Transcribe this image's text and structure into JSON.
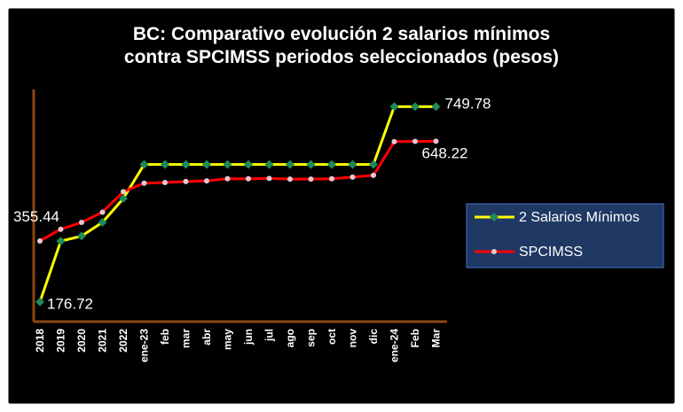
{
  "chart_data": {
    "type": "line",
    "title": "BC: Comparativo evolución 2 salarios mínimos",
    "subtitle": "contra SPCIMSS periodos seleccionados (pesos)",
    "categories": [
      "2018",
      "2019",
      "2020",
      "2021",
      "2022",
      "ene-23",
      "feb",
      "mar",
      "abr",
      "may",
      "jun",
      "jul",
      "ago",
      "sep",
      "oct",
      "nov",
      "dic",
      "ene-24",
      "Feb",
      "Mar"
    ],
    "ylim": [
      150,
      800
    ],
    "grid": false,
    "legend_position": "right",
    "series": [
      {
        "name": "2 Salarios Mínimos",
        "color": "#ffff00",
        "marker_color": "#1e8a5a",
        "values": [
          176.72,
          355.0,
          370.0,
          410.0,
          480.0,
          580.0,
          580.0,
          580.0,
          580.0,
          580.0,
          580.0,
          580.0,
          580.0,
          580.0,
          580.0,
          580.0,
          580.0,
          749.78,
          749.78,
          749.78
        ]
      },
      {
        "name": "SPCIMSS",
        "color": "#ff0000",
        "marker_color": "#e6c8d4",
        "values": [
          355.44,
          390.0,
          410.0,
          440.0,
          500.0,
          525.0,
          527.0,
          530.0,
          532.0,
          538.0,
          538.0,
          539.0,
          537.0,
          537.0,
          538.0,
          543.0,
          548.0,
          647.0,
          648.0,
          648.22
        ]
      }
    ],
    "data_labels": [
      {
        "text": "355.44",
        "series": 1,
        "index": 0
      },
      {
        "text": "176.72",
        "series": 0,
        "index": 0
      },
      {
        "text": "749.78",
        "series": 0,
        "index": 19
      },
      {
        "text": "648.22",
        "series": 1,
        "index": 19
      }
    ]
  },
  "colors": {
    "background": "#000000",
    "frame": "#7a7a7a",
    "axis": "#8b4513",
    "legend_bg": "#1f3864",
    "legend_border": "#4472c4",
    "text": "#ffffff"
  }
}
